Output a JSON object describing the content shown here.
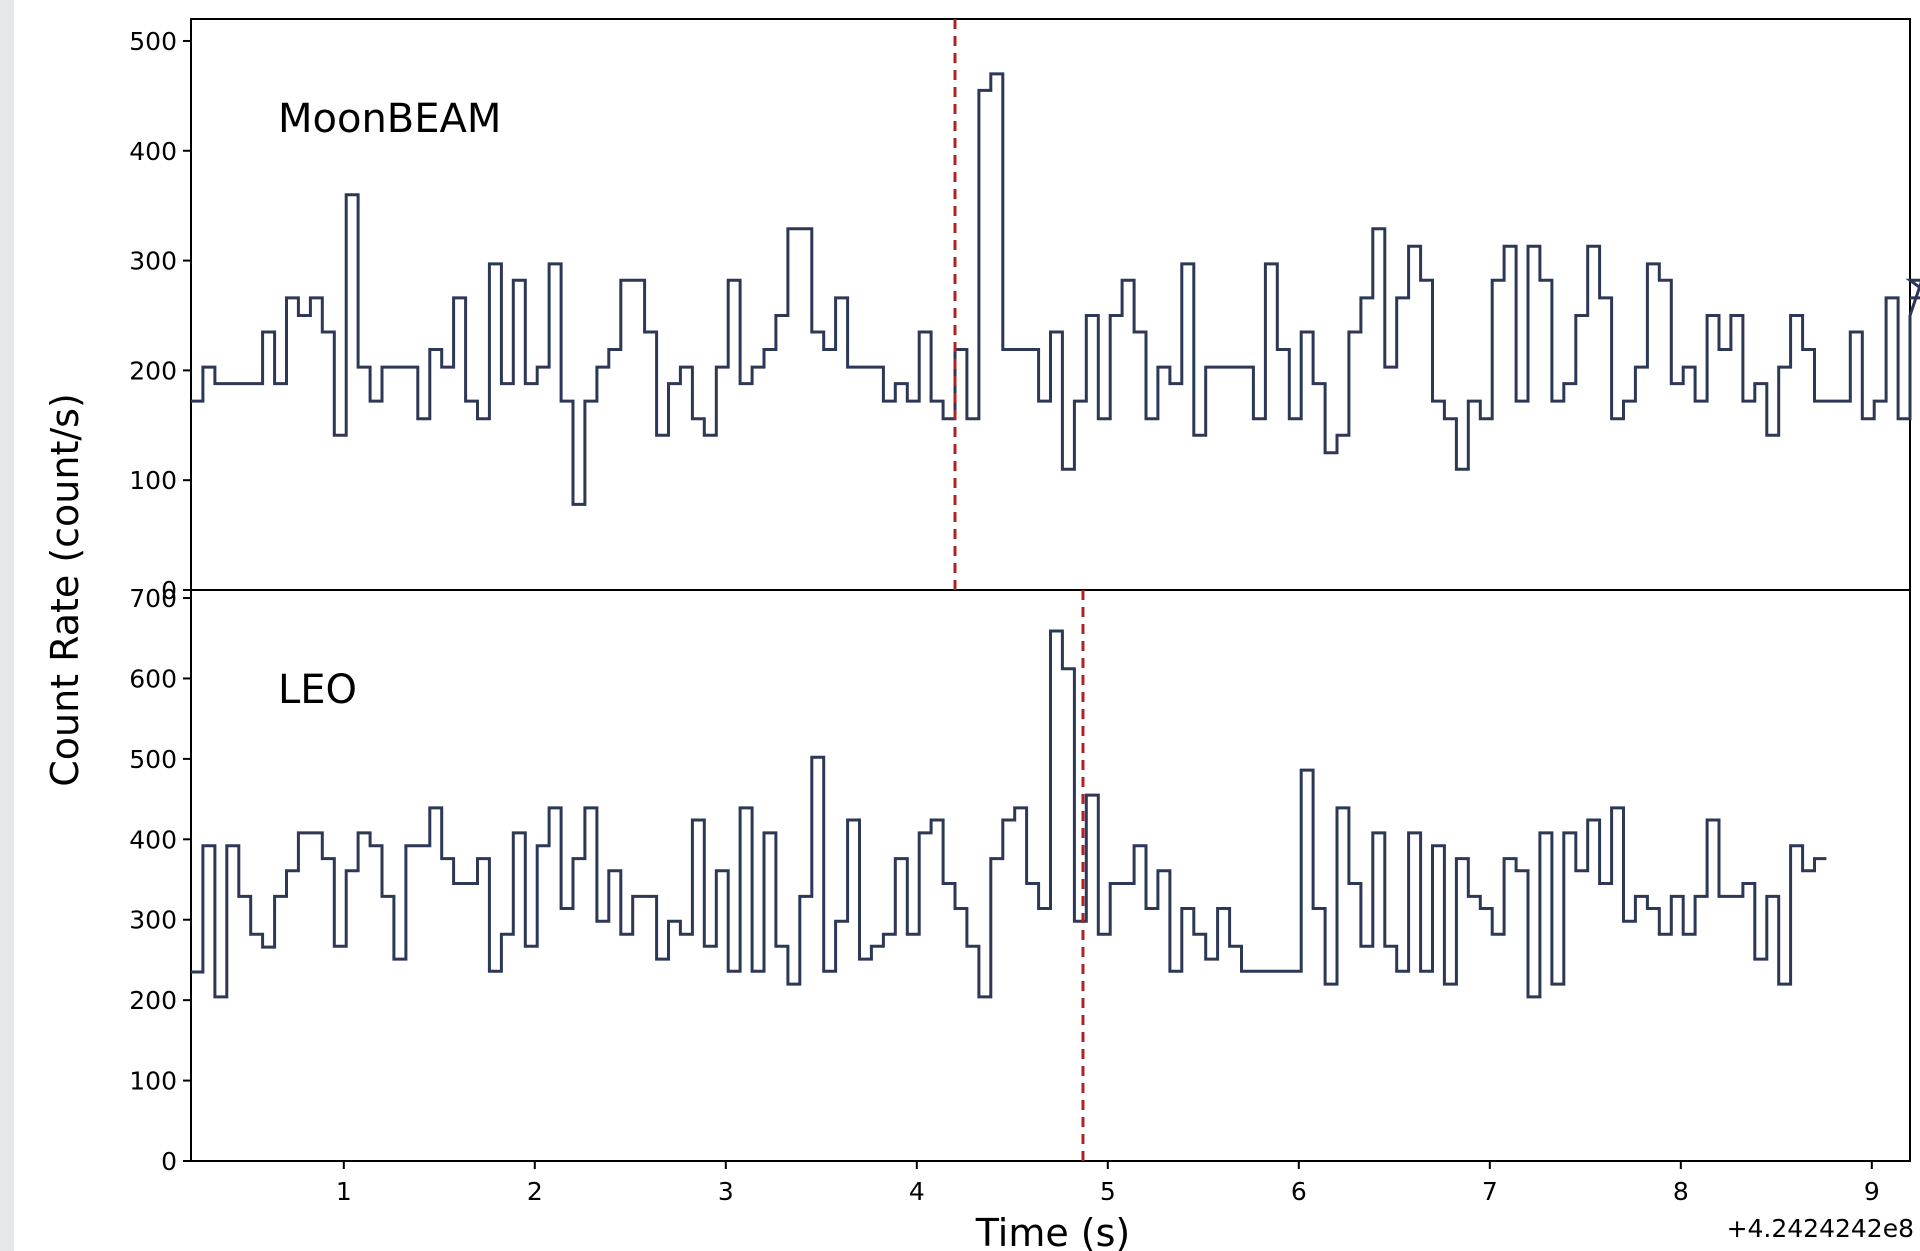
{
  "chart_data": {
    "type": "line",
    "drawstyle": "steps-post",
    "xlabel": "Time (s)",
    "ylabel": "Count Rate (count/s)",
    "x_offset_label": "+4.2424242e8",
    "xlim": [
      0.2,
      9.2
    ],
    "xticks": [
      "1",
      "2",
      "3",
      "4",
      "5",
      "6",
      "7",
      "8",
      "9"
    ],
    "line_color": "#2d3756",
    "marker_color": "#b22222",
    "bin_width": 0.0625,
    "panels": [
      {
        "label": "MoonBEAM",
        "ylim": [
          0,
          520
        ],
        "yticks": [
          "0",
          "100",
          "200",
          "300",
          "400",
          "500"
        ],
        "marker_x": 4.2,
        "x_start": 0.2,
        "values": [
          172,
          203,
          188,
          188,
          188,
          188,
          235,
          188,
          266,
          250,
          266,
          235,
          141,
          360,
          203,
          172,
          203,
          203,
          203,
          156,
          219,
          203,
          266,
          172,
          156,
          297,
          188,
          282,
          188,
          203,
          297,
          172,
          78,
          172,
          203,
          219,
          282,
          282,
          235,
          141,
          188,
          203,
          156,
          141,
          203,
          282,
          188,
          203,
          219,
          250,
          329,
          329,
          235,
          219,
          266,
          203,
          203,
          203,
          172,
          188,
          172,
          235,
          172,
          156,
          219,
          156,
          455,
          470,
          219,
          219,
          219,
          172,
          235,
          110,
          172,
          250,
          156,
          250,
          282,
          235,
          156,
          203,
          188,
          297,
          141,
          203,
          203,
          203,
          203,
          156,
          297,
          219,
          156,
          235,
          188,
          125,
          141,
          235,
          266,
          329,
          203,
          266,
          313,
          282,
          172,
          156,
          110,
          172,
          156,
          282,
          313,
          172,
          313,
          282,
          172,
          188,
          250,
          313,
          266,
          156,
          172,
          203,
          297,
          282,
          188,
          203,
          172,
          250,
          219,
          250,
          172,
          188,
          141,
          203,
          250,
          219,
          172,
          172,
          172,
          235,
          156,
          172,
          266,
          156,
          250,
          282,
          266
        ]
      },
      {
        "label": "LEO",
        "ylim": [
          0,
          710
        ],
        "yticks": [
          "0",
          "100",
          "200",
          "300",
          "400",
          "500",
          "600",
          "700"
        ],
        "marker_x": 4.87,
        "x_start": 0.2,
        "values": [
          235,
          392,
          204,
          392,
          329,
          282,
          266,
          329,
          361,
          408,
          408,
          376,
          267,
          361,
          408,
          392,
          329,
          251,
          392,
          392,
          439,
          376,
          345,
          345,
          376,
          236,
          282,
          408,
          267,
          392,
          439,
          314,
          376,
          439,
          298,
          361,
          282,
          329,
          329,
          251,
          298,
          282,
          424,
          267,
          361,
          236,
          439,
          236,
          408,
          267,
          220,
          329,
          502,
          236,
          298,
          424,
          251,
          267,
          282,
          376,
          282,
          408,
          424,
          345,
          314,
          267,
          204,
          376,
          424,
          439,
          345,
          314,
          659,
          612,
          298,
          455,
          282,
          345,
          345,
          392,
          314,
          361,
          236,
          314,
          282,
          251,
          314,
          267,
          236,
          236,
          236,
          236,
          236,
          486,
          314,
          220,
          439,
          345,
          267,
          408,
          267,
          236,
          408,
          236,
          392,
          220,
          376,
          329,
          314,
          282,
          376,
          361,
          204,
          408,
          220,
          408,
          361,
          424,
          345,
          439,
          298,
          329,
          314,
          282,
          329,
          282,
          329,
          424,
          329,
          329,
          345,
          251,
          329,
          220,
          392,
          361,
          376
        ]
      }
    ]
  }
}
